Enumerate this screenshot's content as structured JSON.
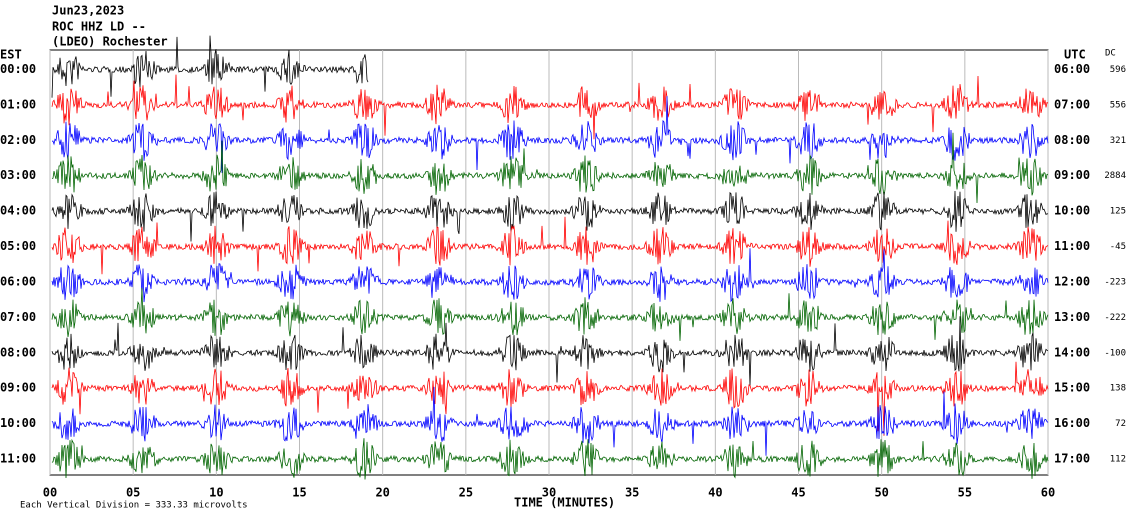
{
  "chart_data": {
    "type": "helicorder",
    "title_lines": [
      "Jun23,2023",
      "ROC HHZ LD --",
      "(LDEO) Rochester"
    ],
    "left_header": "EST",
    "right_header": "UTC",
    "dc_header": "DC",
    "left_labels": [
      "00:00",
      "01:00",
      "02:00",
      "03:00",
      "04:00",
      "05:00",
      "06:00",
      "07:00",
      "08:00",
      "09:00",
      "10:00",
      "11:00"
    ],
    "right_labels": [
      "06:00",
      "07:00",
      "08:00",
      "09:00",
      "10:00",
      "11:00",
      "12:00",
      "13:00",
      "14:00",
      "15:00",
      "16:00",
      "17:00"
    ],
    "dc_values": [
      596,
      556,
      321,
      2884,
      125,
      -45,
      -223,
      -222,
      -100,
      138,
      72,
      112
    ],
    "colors": [
      "#000000",
      "#ff0000",
      "#0000ff",
      "#006400"
    ],
    "xlabel": "TIME (MINUTES)",
    "xlim": [
      0,
      60
    ],
    "xticks": [
      {
        "value": 0,
        "label": "00"
      },
      {
        "value": 5,
        "label": "05"
      },
      10,
      15,
      20,
      25,
      30,
      35,
      40,
      45,
      50,
      55,
      60
    ],
    "footer": "Each Vertical Division = 333.33 microvolts"
  }
}
